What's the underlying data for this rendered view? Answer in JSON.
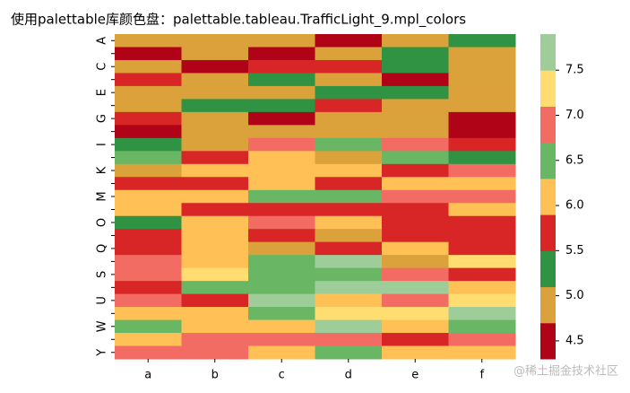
{
  "chart_data": {
    "type": "heatmap",
    "title": "使用palettable库颜色盘：palettable.tableau.TrafficLight_9.mpl_colors",
    "x": [
      "a",
      "b",
      "c",
      "d",
      "e",
      "f"
    ],
    "y": [
      "A",
      null,
      "C",
      null,
      "E",
      null,
      "G",
      null,
      "I",
      null,
      "K",
      null,
      "M",
      null,
      "O",
      null,
      "Q",
      null,
      "S",
      null,
      "U",
      null,
      "W",
      null,
      "Y"
    ],
    "values": [
      [
        4.9,
        4.9,
        4.9,
        4.5,
        4.9,
        5.3
      ],
      [
        4.5,
        4.9,
        4.5,
        4.9,
        5.3,
        4.9
      ],
      [
        4.9,
        4.5,
        5.7,
        5.7,
        5.3,
        4.9
      ],
      [
        5.7,
        4.9,
        5.3,
        4.9,
        4.5,
        4.9
      ],
      [
        4.9,
        4.9,
        4.9,
        5.3,
        5.3,
        4.9
      ],
      [
        4.9,
        5.3,
        5.3,
        5.7,
        4.9,
        4.9
      ],
      [
        5.7,
        4.9,
        4.5,
        4.9,
        4.9,
        4.5
      ],
      [
        4.5,
        4.9,
        4.9,
        4.9,
        4.9,
        4.5
      ],
      [
        5.3,
        4.9,
        6.9,
        6.5,
        6.9,
        5.7
      ],
      [
        6.5,
        5.7,
        6.1,
        4.9,
        6.5,
        5.3
      ],
      [
        4.9,
        6.1,
        6.1,
        6.1,
        5.7,
        6.9
      ],
      [
        5.7,
        5.7,
        6.1,
        5.7,
        6.1,
        6.1
      ],
      [
        6.1,
        6.1,
        6.5,
        6.5,
        6.9,
        6.9
      ],
      [
        6.1,
        5.7,
        5.7,
        5.7,
        5.7,
        6.1
      ],
      [
        5.3,
        6.1,
        6.9,
        6.1,
        5.7,
        5.7
      ],
      [
        5.7,
        6.1,
        5.7,
        4.9,
        5.7,
        5.7
      ],
      [
        5.7,
        6.1,
        4.9,
        5.7,
        6.1,
        5.7
      ],
      [
        6.9,
        6.1,
        6.5,
        7.7,
        4.9,
        7.3
      ],
      [
        6.9,
        7.3,
        6.5,
        6.5,
        6.9,
        5.7
      ],
      [
        5.7,
        6.5,
        6.5,
        7.7,
        7.7,
        6.1
      ],
      [
        6.9,
        5.7,
        7.7,
        6.1,
        6.9,
        7.3
      ],
      [
        6.1,
        6.1,
        6.5,
        7.3,
        7.3,
        7.7
      ],
      [
        6.5,
        6.1,
        6.1,
        7.7,
        6.1,
        6.5
      ],
      [
        6.1,
        6.9,
        6.9,
        6.9,
        5.7,
        6.9
      ],
      [
        6.9,
        6.9,
        6.1,
        6.5,
        6.1,
        6.1
      ]
    ],
    "colors": [
      "#b10318",
      "#dba13a",
      "#309343",
      "#d82526",
      "#ffc156",
      "#69b764",
      "#f26c64",
      "#ffdd71",
      "#9fcd99"
    ],
    "zlim": [
      4.3,
      7.9
    ],
    "colorbar_ticks": [
      4.5,
      {
        "value": 5,
        "label": "5.0"
      },
      5.5,
      {
        "value": 6,
        "label": "6.0"
      },
      6.5,
      {
        "value": 7,
        "label": "7.0"
      },
      7.5
    ],
    "watermark": "@稀土掘金技术社区"
  }
}
